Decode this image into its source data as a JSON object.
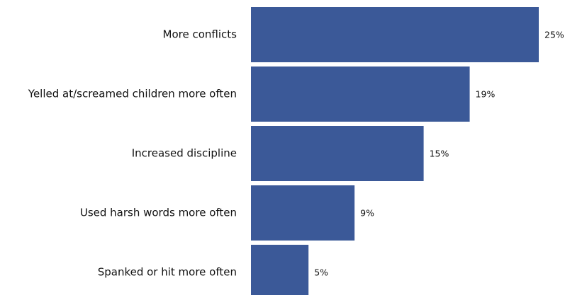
{
  "chart_data": {
    "type": "bar",
    "orientation": "horizontal",
    "categories": [
      "More conflicts",
      "Yelled at/screamed children more often",
      "Increased discipline",
      "Used harsh words more often",
      "Spanked or hit more often"
    ],
    "values": [
      25,
      19,
      15,
      9,
      5
    ],
    "value_labels": [
      "25%",
      "19%",
      "15%",
      "9%",
      "5%"
    ],
    "unit": "%",
    "xlim": [
      0,
      25
    ],
    "bar_color": "#3b5998",
    "grid": false,
    "legend": "none",
    "title": "",
    "xlabel": "",
    "ylabel": ""
  }
}
